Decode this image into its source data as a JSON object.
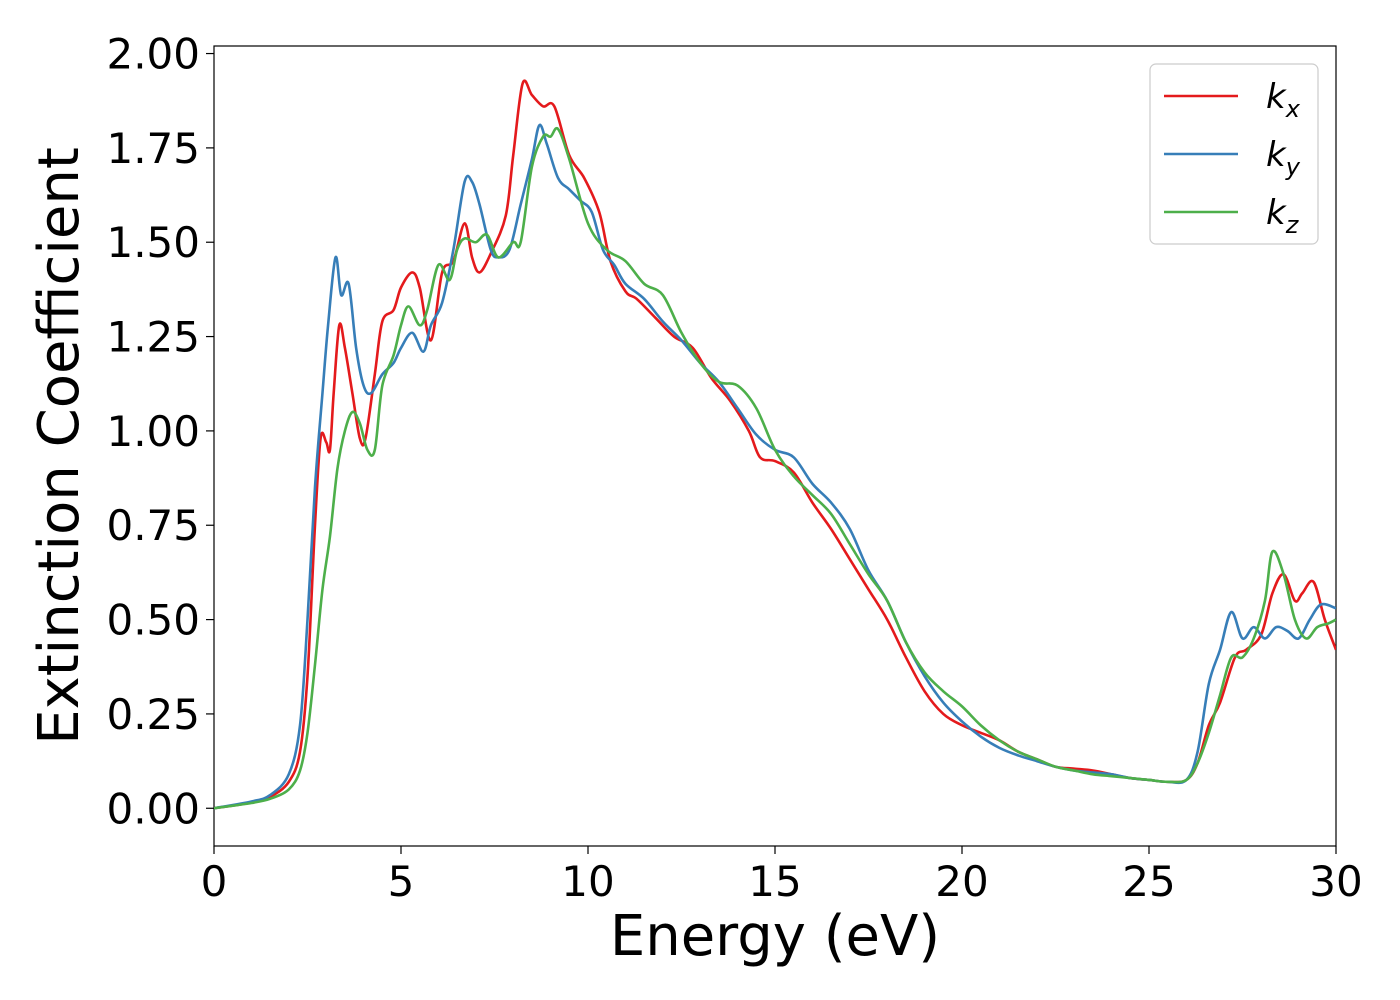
{
  "chart_data": {
    "type": "line",
    "xlabel": "Energy (eV)",
    "ylabel": "Extinction Coefficient",
    "xlim": [
      0,
      30
    ],
    "ylim": [
      -0.1,
      2.02
    ],
    "xticks": [
      "0",
      "5",
      "10",
      "15",
      "20",
      "25",
      "30"
    ],
    "yticks": [
      "0.00",
      "0.25",
      "0.50",
      "0.75",
      "1.00",
      "1.25",
      "1.50",
      "1.75",
      "2.00"
    ],
    "grid": false,
    "legend": "top-right",
    "series": [
      {
        "name": "k_x",
        "label_main": "k",
        "label_sub": "x",
        "color": "#e41a1c",
        "x": [
          0,
          1,
          1.5,
          2.0,
          2.3,
          2.5,
          2.7,
          2.85,
          3.0,
          3.1,
          3.2,
          3.35,
          3.5,
          3.7,
          3.9,
          4.05,
          4.3,
          4.5,
          4.8,
          5.0,
          5.3,
          5.5,
          5.8,
          6.1,
          6.4,
          6.7,
          6.9,
          7.1,
          7.4,
          7.8,
          8.0,
          8.25,
          8.5,
          8.8,
          9.1,
          9.5,
          9.9,
          10.3,
          10.6,
          11.0,
          11.3,
          11.8,
          12.3,
          12.8,
          13.3,
          13.8,
          14.3,
          14.6,
          15.0,
          15.5,
          16.0,
          16.5,
          17.0,
          17.5,
          18.0,
          18.5,
          19.0,
          19.5,
          20.0,
          20.5,
          21.0,
          21.5,
          22.0,
          22.5,
          23.0,
          23.5,
          24.0,
          24.5,
          25.0,
          25.5,
          26.0,
          26.3,
          26.6,
          26.9,
          27.3,
          27.6,
          28.0,
          28.3,
          28.6,
          28.9,
          29.1,
          29.4,
          29.7,
          30.0
        ],
        "y": [
          0.0,
          0.015,
          0.03,
          0.07,
          0.15,
          0.35,
          0.75,
          0.98,
          0.97,
          0.95,
          1.1,
          1.28,
          1.22,
          1.1,
          0.98,
          0.98,
          1.15,
          1.29,
          1.32,
          1.38,
          1.42,
          1.38,
          1.24,
          1.42,
          1.45,
          1.55,
          1.46,
          1.42,
          1.47,
          1.57,
          1.73,
          1.92,
          1.89,
          1.86,
          1.86,
          1.73,
          1.67,
          1.58,
          1.45,
          1.37,
          1.35,
          1.3,
          1.25,
          1.22,
          1.14,
          1.08,
          1.0,
          0.93,
          0.92,
          0.89,
          0.81,
          0.74,
          0.66,
          0.58,
          0.5,
          0.4,
          0.31,
          0.25,
          0.22,
          0.2,
          0.18,
          0.15,
          0.13,
          0.11,
          0.105,
          0.1,
          0.09,
          0.08,
          0.075,
          0.07,
          0.075,
          0.12,
          0.22,
          0.28,
          0.4,
          0.42,
          0.46,
          0.57,
          0.62,
          0.55,
          0.57,
          0.6,
          0.5,
          0.42
        ]
      },
      {
        "name": "k_y",
        "label_main": "k",
        "label_sub": "y",
        "color": "#377eb8",
        "x": [
          0,
          1,
          1.5,
          2.0,
          2.3,
          2.5,
          2.7,
          2.9,
          3.05,
          3.25,
          3.4,
          3.6,
          3.8,
          4.0,
          4.2,
          4.5,
          4.8,
          5.0,
          5.3,
          5.6,
          5.8,
          6.1,
          6.4,
          6.7,
          6.9,
          7.1,
          7.4,
          7.6,
          7.9,
          8.2,
          8.5,
          8.7,
          8.9,
          9.2,
          9.5,
          9.8,
          10.1,
          10.4,
          10.7,
          11.0,
          11.5,
          12.0,
          12.5,
          13.0,
          13.5,
          14.0,
          14.5,
          15.0,
          15.5,
          16.0,
          16.5,
          17.0,
          17.5,
          18.0,
          18.5,
          19.0,
          19.5,
          20.0,
          20.5,
          21.0,
          21.5,
          22.0,
          22.5,
          23.0,
          23.5,
          24.0,
          24.5,
          25.0,
          25.5,
          26.0,
          26.3,
          26.6,
          26.9,
          27.2,
          27.5,
          27.8,
          28.1,
          28.4,
          28.7,
          29.0,
          29.3,
          29.6,
          30.0
        ],
        "y": [
          0.0,
          0.018,
          0.035,
          0.09,
          0.22,
          0.5,
          0.85,
          1.1,
          1.28,
          1.46,
          1.36,
          1.39,
          1.22,
          1.12,
          1.1,
          1.15,
          1.18,
          1.22,
          1.26,
          1.21,
          1.28,
          1.34,
          1.48,
          1.66,
          1.66,
          1.6,
          1.48,
          1.46,
          1.48,
          1.6,
          1.72,
          1.81,
          1.76,
          1.67,
          1.64,
          1.61,
          1.58,
          1.48,
          1.44,
          1.39,
          1.35,
          1.29,
          1.24,
          1.18,
          1.13,
          1.06,
          0.99,
          0.95,
          0.93,
          0.86,
          0.81,
          0.74,
          0.63,
          0.55,
          0.44,
          0.35,
          0.28,
          0.23,
          0.19,
          0.16,
          0.14,
          0.125,
          0.11,
          0.1,
          0.095,
          0.09,
          0.08,
          0.075,
          0.07,
          0.075,
          0.15,
          0.33,
          0.42,
          0.52,
          0.45,
          0.48,
          0.45,
          0.48,
          0.47,
          0.45,
          0.5,
          0.54,
          0.53
        ]
      },
      {
        "name": "k_z",
        "label_main": "k",
        "label_sub": "z",
        "color": "#4daf4a",
        "x": [
          0,
          1,
          1.5,
          2.0,
          2.3,
          2.5,
          2.7,
          2.9,
          3.1,
          3.3,
          3.5,
          3.7,
          3.9,
          4.1,
          4.3,
          4.5,
          4.8,
          5.0,
          5.2,
          5.5,
          5.7,
          6.0,
          6.3,
          6.5,
          6.7,
          7.0,
          7.3,
          7.6,
          8.0,
          8.2,
          8.5,
          8.8,
          9.0,
          9.2,
          9.5,
          10.0,
          10.5,
          11.0,
          11.5,
          12.0,
          12.5,
          13.0,
          13.5,
          14.0,
          14.5,
          15.0,
          15.5,
          16.0,
          16.5,
          17.0,
          17.5,
          18.0,
          18.5,
          19.0,
          19.5,
          20.0,
          20.5,
          21.0,
          21.5,
          22.0,
          22.5,
          23.0,
          23.5,
          24.0,
          24.5,
          25.0,
          25.5,
          26.0,
          26.3,
          26.6,
          26.9,
          27.2,
          27.5,
          27.8,
          28.1,
          28.3,
          28.6,
          28.9,
          29.2,
          29.5,
          29.8,
          30.0
        ],
        "y": [
          0.0,
          0.014,
          0.025,
          0.05,
          0.1,
          0.2,
          0.38,
          0.58,
          0.72,
          0.9,
          1.0,
          1.05,
          1.02,
          0.95,
          0.95,
          1.12,
          1.2,
          1.28,
          1.33,
          1.28,
          1.32,
          1.44,
          1.4,
          1.48,
          1.51,
          1.5,
          1.52,
          1.46,
          1.5,
          1.5,
          1.7,
          1.78,
          1.78,
          1.8,
          1.72,
          1.55,
          1.48,
          1.45,
          1.39,
          1.36,
          1.26,
          1.18,
          1.13,
          1.12,
          1.06,
          0.95,
          0.88,
          0.83,
          0.78,
          0.7,
          0.62,
          0.55,
          0.44,
          0.36,
          0.31,
          0.27,
          0.22,
          0.18,
          0.15,
          0.13,
          0.11,
          0.1,
          0.09,
          0.085,
          0.08,
          0.075,
          0.07,
          0.075,
          0.12,
          0.2,
          0.3,
          0.4,
          0.4,
          0.45,
          0.55,
          0.68,
          0.62,
          0.5,
          0.45,
          0.48,
          0.49,
          0.5
        ]
      }
    ]
  }
}
